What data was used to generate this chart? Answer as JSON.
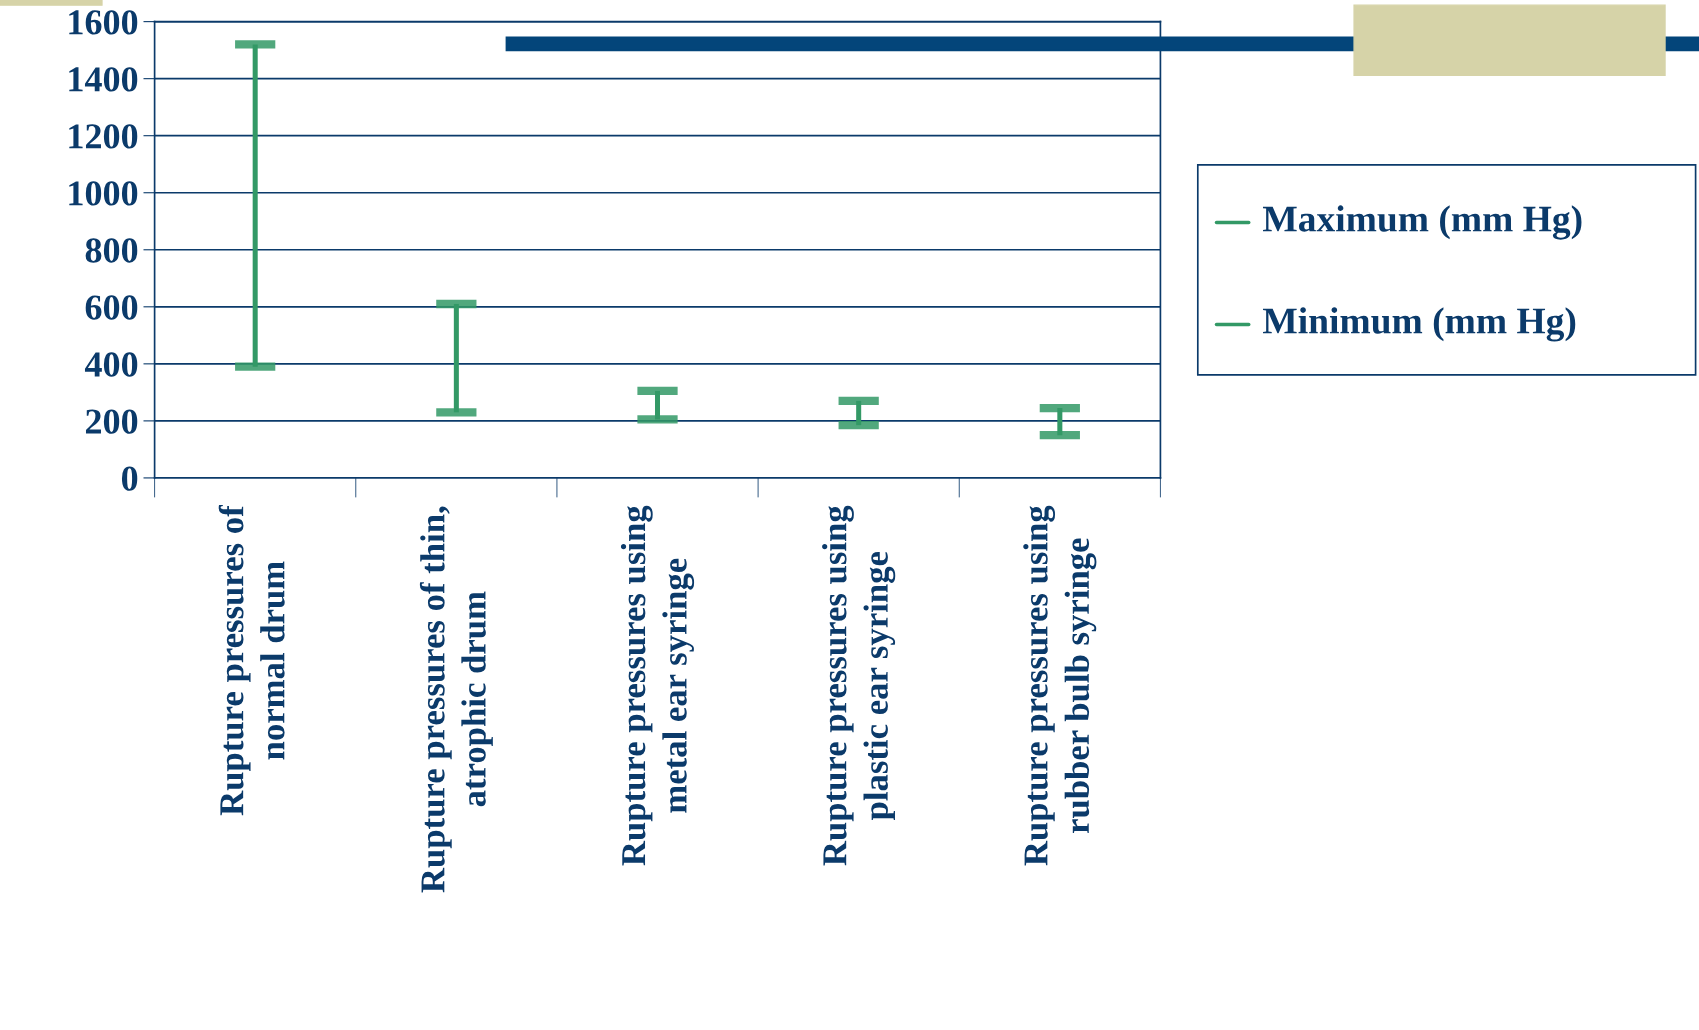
{
  "chart_data": {
    "type": "bar",
    "categories": [
      "Rupture pressures of normal drum",
      "Rupture pressures of thin, atrophic drum",
      "Rupture pressures using metal ear syringe",
      "Rupture pressures using plastic ear syringe",
      "Rupture pressures using rubber bulb syringe"
    ],
    "base": [
      390,
      230,
      205,
      185,
      150
    ],
    "values": [
      1130,
      380,
      100,
      85,
      95
    ],
    "color": "#339966",
    "annotations": [
      "Maximum (mm Hg)",
      "Minimum (mm Hg)"
    ],
    "ylim": [
      0,
      1600
    ],
    "yticks": [
      0,
      200,
      400,
      600,
      800,
      1000,
      1200,
      1400,
      1600
    ],
    "grid": "y"
  }
}
